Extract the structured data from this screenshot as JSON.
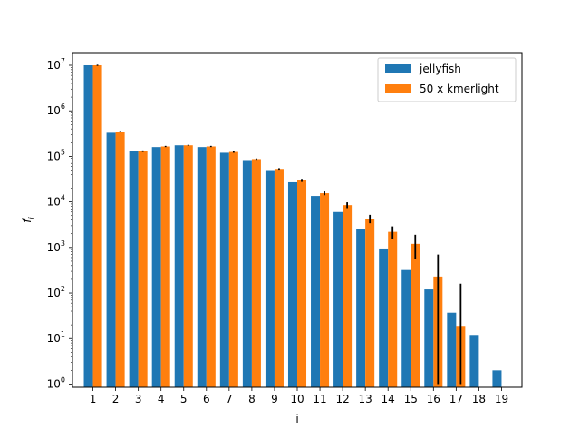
{
  "chart_data": {
    "type": "bar",
    "title": "",
    "xlabel": "i",
    "ylabel": "f",
    "ylabel_subscript": "i",
    "yscale": "log",
    "ylim": [
      0.85,
      19000000
    ],
    "y_ticks": [
      {
        "value": 1,
        "base": "10",
        "exp": "0"
      },
      {
        "value": 10,
        "base": "10",
        "exp": "1"
      },
      {
        "value": 100,
        "base": "10",
        "exp": "2"
      },
      {
        "value": 1000,
        "base": "10",
        "exp": "3"
      },
      {
        "value": 10000,
        "base": "10",
        "exp": "4"
      },
      {
        "value": 100000,
        "base": "10",
        "exp": "5"
      },
      {
        "value": 1000000,
        "base": "10",
        "exp": "6"
      },
      {
        "value": 10000000,
        "base": "10",
        "exp": "7"
      }
    ],
    "categories": [
      "1",
      "2",
      "3",
      "4",
      "5",
      "6",
      "7",
      "8",
      "9",
      "10",
      "11",
      "12",
      "13",
      "14",
      "15",
      "16",
      "17",
      "18",
      "19"
    ],
    "legend_position": "top-right",
    "grid": false,
    "series": [
      {
        "name": "jellyfish",
        "color": "#1f77b4",
        "values": [
          10000000,
          330000,
          130000,
          160000,
          175000,
          160000,
          120000,
          83000,
          50000,
          27000,
          13500,
          6000,
          2500,
          950,
          320,
          120,
          37,
          12,
          2
        ]
      },
      {
        "name": "50 x kmerlight",
        "color": "#ff7f0e",
        "values": [
          10000000,
          350000,
          130000,
          165000,
          175000,
          165000,
          125000,
          87000,
          53000,
          30000,
          15500,
          8500,
          4200,
          2200,
          1200,
          230,
          19,
          null,
          null
        ],
        "error_low": [
          9700000,
          340000,
          125000,
          160000,
          170000,
          160000,
          120000,
          84000,
          51000,
          27500,
          14000,
          7300,
          3400,
          1500,
          550,
          1,
          1,
          null,
          null
        ],
        "error_high": [
          10300000,
          360000,
          135000,
          170000,
          180000,
          170000,
          130000,
          90000,
          55000,
          32000,
          17000,
          9800,
          5200,
          2900,
          1900,
          700,
          160,
          null,
          null
        ]
      }
    ]
  }
}
